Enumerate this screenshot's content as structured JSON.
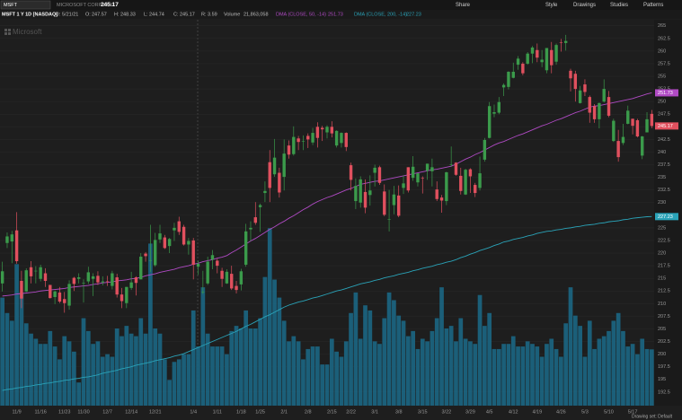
{
  "header": {
    "symbol": "MSFT",
    "company": "MICROSOFT CORP COM",
    "study": "MSFT 1 Y 1D [NASDAQ]",
    "date_label": "D:",
    "date": "5/21/21",
    "open_label": "O:",
    "high_label": "H:",
    "low_label": "L:",
    "close_label": "C:",
    "range_label": "R:",
    "range": "3.59",
    "volume_label": "Volume",
    "volume": "21,863,058"
  },
  "toolbar": {
    "items": [
      "Share",
      "Style",
      "Drawings",
      "Studies",
      "Patterns"
    ]
  },
  "footer": {
    "drawing_set": "Drawing set: Default"
  },
  "chart_data": {
    "type": "candlestick",
    "watermark": "Microsoft",
    "categories": [
      null,
      null,
      null,
      "11/9",
      null,
      null,
      null,
      null,
      "11/16",
      null,
      null,
      null,
      null,
      "11/23",
      null,
      null,
      null,
      "11/30",
      null,
      null,
      null,
      null,
      "12/7",
      null,
      null,
      null,
      null,
      "12/14",
      null,
      null,
      null,
      null,
      "12/21",
      null,
      null,
      null,
      null,
      null,
      null,
      null,
      "1/4",
      null,
      null,
      null,
      null,
      "1/11",
      null,
      null,
      null,
      null,
      "1/18",
      null,
      null,
      null,
      "1/25",
      null,
      null,
      null,
      null,
      "2/1",
      null,
      null,
      null,
      null,
      "2/8",
      null,
      null,
      null,
      null,
      "2/15",
      null,
      null,
      null,
      "2/22",
      null,
      null,
      null,
      null,
      "3/1",
      null,
      null,
      null,
      null,
      "3/8",
      null,
      null,
      null,
      null,
      "3/15",
      null,
      null,
      null,
      null,
      "3/22",
      null,
      null,
      null,
      null,
      "3/29",
      null,
      null,
      null,
      "4/5",
      null,
      null,
      null,
      null,
      "4/12",
      null,
      null,
      null,
      null,
      "4/19",
      null,
      null,
      null,
      null,
      "4/26",
      null,
      null,
      null,
      null,
      "5/3",
      null,
      null,
      null,
      null,
      "5/10",
      null,
      null,
      null,
      null,
      "5/17",
      null,
      null,
      null,
      null
    ],
    "open": [
      214.0,
      222.0,
      222.3,
      224.5,
      214.5,
      212.4,
      217.2,
      216.4,
      214.9,
      216.0,
      213.7,
      211.3,
      212.2,
      210.9,
      209.6,
      215.1,
      214.9,
      214.1,
      214.4,
      214.9,
      215.5,
      214.2,
      214.4,
      213.5,
      215.2,
      211.8,
      210.1,
      213.1,
      215.2,
      214.8,
      219.9,
      218.6,
      217.6,
      222.7,
      223.1,
      221.4,
      224.5,
      226.3,
      225.2,
      221.7,
      222.5,
      217.3,
      212.2,
      214.0,
      218.7,
      218.5,
      216.5,
      214.0,
      215.9,
      213.5,
      213.8,
      217.7,
      224.7,
      227.1,
      229.1,
      231.9,
      238.0,
      235.6,
      235.9,
      235.1,
      241.3,
      239.6,
      242.7,
      242.2,
      243.2,
      241.9,
      245.0,
      244.8,
      243.9,
      245.0,
      241.3,
      241.8,
      243.8,
      237.4,
      230.3,
      230.0,
      232.1,
      231.5,
      235.9,
      237.0,
      232.2,
      226.7,
      229.5,
      231.4,
      232.9,
      237.0,
      234.9,
      234.0,
      234.9,
      236.3,
      236.2,
      232.6,
      231.0,
      230.3,
      237.5,
      237.9,
      235.3,
      231.6,
      236.6,
      233.5,
      232.9,
      238.5,
      242.8,
      247.6,
      247.8,
      252.8,
      252.9,
      254.7,
      257.3,
      257.5,
      257.5,
      259.5,
      260.2,
      257.8,
      256.2,
      260.2,
      257.9,
      261.7,
      261.6,
      256.1,
      255.5,
      249.7,
      253.4,
      250.9,
      249.1,
      246.5,
      250.0,
      250.9,
      242.2,
      242.2,
      241.8,
      245.6,
      246.6,
      246.3,
      239.3,
      243.9,
      247.57
    ],
    "high": [
      218.3,
      224.1,
      224.4,
      228.1,
      216.5,
      217.0,
      218.4,
      217.4,
      217.7,
      217.0,
      213.7,
      212.6,
      213.3,
      212.3,
      214.6,
      215.3,
      216.0,
      214.8,
      217.3,
      216.0,
      216.4,
      215.4,
      215.5,
      216.5,
      215.9,
      213.1,
      213.3,
      216.3,
      215.4,
      220.0,
      220.2,
      225.6,
      224.0,
      225.6,
      223.6,
      223.0,
      226.0,
      227.2,
      225.6,
      223.0,
      223.0,
      218.5,
      216.5,
      219.3,
      220.6,
      218.9,
      217.1,
      216.8,
      217.5,
      214.5,
      216.9,
      225.8,
      226.3,
      230.1,
      229.8,
      234.2,
      240.4,
      242.6,
      236.9,
      242.5,
      242.3,
      245.1,
      243.2,
      243.3,
      243.7,
      244.8,
      245.9,
      245.2,
      245.3,
      246.1,
      244.3,
      243.9,
      243.9,
      237.9,
      234.8,
      235.2,
      234.6,
      235.4,
      237.5,
      237.3,
      233.6,
      232.5,
      233.3,
      233.4,
      235.4,
      237.0,
      239.2,
      235.8,
      235.2,
      237.7,
      238.7,
      234.2,
      231.5,
      236.1,
      241.1,
      238.0,
      236.9,
      236.7,
      236.8,
      233.9,
      239.1,
      242.8,
      249.9,
      249.4,
      250.9,
      253.6,
      256.0,
      257.7,
      259.0,
      257.8,
      259.8,
      261.0,
      261.5,
      260.2,
      260.6,
      261.8,
      261.5,
      262.4,
      263.2,
      256.5,
      256.1,
      253.1,
      254.4,
      251.2,
      249.5,
      249.8,
      254.4,
      252.1,
      246.6,
      244.4,
      245.6,
      249.2,
      246.6,
      246.6,
      243.2,
      247.9,
      248.33
    ],
    "low": [
      212.4,
      221.0,
      218.0,
      217.9,
      209.1,
      212.3,
      214.0,
      214.0,
      214.4,
      213.3,
      211.0,
      209.9,
      210.1,
      208.2,
      208.8,
      212.5,
      214.0,
      210.2,
      213.9,
      211.5,
      213.7,
      213.6,
      213.5,
      212.8,
      211.2,
      209.1,
      209.1,
      212.7,
      211.6,
      214.8,
      218.3,
      216.3,
      217.3,
      222.0,
      220.8,
      220.0,
      222.4,
      223.6,
      221.5,
      219.7,
      214.8,
      215.7,
      211.9,
      213.7,
      216.8,
      216.0,
      213.3,
      213.9,
      212.7,
      212.0,
      212.6,
      217.3,
      222.4,
      225.6,
      224.2,
      230.1,
      230.1,
      235.1,
      231.0,
      232.4,
      238.7,
      239.3,
      240.4,
      240.4,
      240.8,
      241.4,
      240.9,
      242.2,
      242.7,
      242.9,
      240.9,
      240.9,
      240.2,
      232.4,
      228.7,
      229.0,
      227.9,
      229.4,
      233.2,
      233.5,
      227.3,
      224.3,
      227.7,
      227.1,
      231.7,
      232.0,
      234.3,
      233.2,
      231.8,
      234.5,
      233.2,
      230.3,
      228.0,
      229.5,
      237.1,
      235.3,
      231.6,
      231.5,
      231.9,
      231.1,
      232.4,
      238.1,
      242.7,
      246.9,
      247.5,
      251.1,
      252.4,
      254.6,
      256.3,
      255.2,
      257.3,
      257.6,
      257.8,
      256.8,
      255.6,
      255.6,
      257.3,
      259.9,
      260.1,
      252.0,
      250.0,
      249.6,
      251.1,
      245.8,
      245.8,
      244.7,
      249.8,
      246.9,
      242.0,
      238.1,
      241.4,
      245.5,
      243.5,
      242.9,
      238.6,
      243.9,
      244.74
    ],
    "close": [
      216.4,
      223.3,
      223.7,
      218.4,
      211.0,
      216.6,
      215.4,
      216.5,
      217.2,
      214.5,
      211.1,
      212.4,
      210.4,
      210.1,
      213.9,
      213.9,
      215.2,
      214.1,
      216.2,
      215.4,
      214.2,
      214.4,
      214.3,
      216.0,
      211.8,
      210.5,
      213.3,
      214.2,
      214.1,
      219.3,
      219.4,
      218.6,
      222.6,
      223.9,
      221.0,
      222.8,
      225.0,
      224.2,
      221.7,
      222.4,
      217.7,
      217.9,
      212.3,
      218.3,
      219.6,
      217.5,
      214.9,
      216.3,
      213.0,
      212.7,
      216.4,
      224.3,
      225.0,
      226.0,
      229.5,
      232.3,
      232.9,
      238.9,
      232.0,
      239.7,
      239.5,
      243.0,
      242.0,
      242.2,
      242.5,
      243.8,
      242.8,
      244.5,
      245.0,
      243.7,
      244.2,
      243.8,
      241.0,
      234.5,
      233.3,
      234.6,
      229.0,
      232.4,
      236.9,
      233.9,
      227.6,
      226.7,
      231.6,
      227.4,
      233.8,
      232.4,
      237.1,
      235.8,
      234.8,
      237.7,
      237.0,
      230.7,
      230.4,
      236.0,
      237.6,
      235.5,
      232.3,
      236.5,
      235.2,
      231.9,
      235.8,
      242.4,
      249.1,
      247.9,
      249.9,
      253.3,
      255.9,
      255.9,
      258.5,
      255.6,
      259.5,
      260.7,
      258.7,
      258.3,
      260.6,
      257.2,
      261.2,
      261.6,
      262.0,
      254.6,
      252.5,
      252.2,
      251.9,
      247.8,
      246.5,
      249.7,
      252.5,
      247.2,
      246.2,
      239.0,
      243.0,
      248.2,
      245.2,
      243.1,
      243.1,
      246.5,
      245.17
    ],
    "up_color": "#3b9b4b",
    "down_color": "#e0505e",
    "volume": [
      42,
      36,
      33,
      55,
      44,
      32,
      28,
      26,
      24,
      24,
      29,
      23,
      18,
      27,
      25,
      21,
      9,
      34,
      29,
      24,
      25,
      19,
      20,
      19,
      30,
      27,
      31,
      28,
      27,
      34,
      28,
      63,
      30,
      28,
      18,
      10,
      17,
      18,
      20,
      20,
      37,
      23,
      46,
      28,
      23,
      23,
      23,
      20,
      29,
      31,
      30,
      37,
      30,
      30,
      34,
      50,
      69,
      49,
      42,
      33,
      25,
      27,
      25,
      18,
      22,
      23,
      23,
      16,
      16,
      26,
      21,
      19,
      25,
      36,
      44,
      26,
      39,
      37,
      25,
      24,
      34,
      44,
      41,
      35,
      33,
      27,
      29,
      22,
      26,
      25,
      29,
      34,
      46,
      30,
      31,
      25,
      34,
      26,
      25,
      24,
      43,
      31,
      36,
      22,
      22,
      24,
      24,
      27,
      23,
      23,
      25,
      24,
      23,
      19,
      24,
      26,
      22,
      19,
      32,
      46,
      35,
      31,
      19,
      33,
      22,
      26,
      27,
      29,
      33,
      36,
      29,
      23,
      24,
      20,
      26,
      22,
      21.863058
    ],
    "volume_color": "#1b6683",
    "y2lim": [
      0,
      150
    ],
    "series": [
      {
        "name": "DMA (CLOSE, 50, -14)",
        "color": "#b04ac4",
        "values": [
          211.5,
          211.6,
          211.7,
          211.9,
          212.0,
          212.1,
          212.2,
          212.3,
          212.5,
          212.6,
          212.7,
          212.8,
          212.9,
          213.0,
          213.2,
          213.3,
          213.4,
          213.5,
          213.6,
          213.8,
          213.9,
          214.1,
          214.2,
          214.3,
          214.5,
          214.6,
          214.7,
          214.9,
          215.0,
          215.2,
          215.5,
          215.7,
          215.9,
          216.2,
          216.4,
          216.6,
          216.8,
          217.1,
          217.3,
          217.5,
          217.8,
          218.0,
          218.3,
          218.5,
          218.7,
          219.0,
          219.2,
          219.5,
          220.1,
          220.6,
          221.2,
          221.8,
          222.4,
          222.9,
          223.5,
          224.1,
          224.7,
          225.2,
          225.8,
          226.3,
          226.9,
          227.4,
          228.0,
          228.6,
          229.1,
          229.7,
          230.2,
          230.6,
          231.0,
          231.3,
          231.7,
          232.1,
          232.5,
          232.8,
          233.2,
          233.6,
          233.8,
          234.0,
          234.2,
          234.3,
          234.5,
          234.7,
          234.9,
          235.1,
          235.3,
          235.5,
          235.7,
          235.9,
          236.1,
          236.3,
          236.5,
          236.6,
          236.8,
          237.0,
          237.2,
          237.6,
          238.1,
          238.6,
          239.0,
          239.5,
          239.9,
          240.4,
          240.9,
          241.4,
          241.8,
          242.1,
          242.5,
          242.9,
          243.3,
          243.6,
          244.0,
          244.4,
          244.8,
          245.2,
          245.5,
          245.9,
          246.3,
          246.6,
          247.0,
          247.4,
          247.8,
          248.1,
          248.5,
          248.9,
          249.1,
          249.2,
          249.4,
          249.6,
          249.8,
          250.0,
          250.2,
          250.4,
          250.6,
          250.9,
          251.2,
          251.5,
          251.73
        ]
      },
      {
        "name": "DMA (CLOSE, 200, -14)",
        "color": "#2aa3b8",
        "values": [
          192.8,
          193.0,
          193.1,
          193.3,
          193.4,
          193.6,
          193.7,
          193.9,
          194.0,
          194.2,
          194.3,
          194.5,
          194.6,
          194.8,
          194.9,
          195.1,
          195.2,
          195.4,
          195.5,
          195.7,
          195.9,
          196.2,
          196.4,
          196.6,
          196.8,
          197.1,
          197.3,
          197.5,
          197.8,
          198.0,
          198.2,
          198.4,
          198.7,
          198.9,
          199.1,
          199.3,
          199.6,
          199.8,
          200.1,
          200.5,
          200.9,
          201.3,
          201.7,
          202.1,
          202.5,
          202.9,
          203.3,
          203.7,
          204.1,
          204.5,
          205.0,
          205.5,
          205.9,
          206.4,
          206.9,
          207.4,
          207.8,
          208.3,
          208.8,
          209.3,
          209.7,
          210.0,
          210.3,
          210.5,
          210.8,
          211.1,
          211.3,
          211.6,
          211.9,
          212.2,
          212.5,
          212.7,
          213.0,
          213.3,
          213.6,
          213.9,
          214.1,
          214.3,
          214.6,
          214.8,
          215.1,
          215.3,
          215.5,
          215.8,
          216.0,
          216.2,
          216.5,
          216.7,
          217.0,
          217.2,
          217.4,
          217.7,
          217.9,
          218.2,
          218.4,
          218.7,
          219.1,
          219.4,
          219.8,
          220.1,
          220.5,
          220.8,
          221.1,
          221.5,
          221.8,
          222.2,
          222.4,
          222.7,
          222.9,
          223.1,
          223.4,
          223.6,
          223.9,
          224.1,
          224.3,
          224.4,
          224.6,
          224.7,
          224.9,
          225.0,
          225.2,
          225.3,
          225.5,
          225.6,
          225.7,
          225.9,
          226.0,
          226.2,
          226.3,
          226.4,
          226.6,
          226.7,
          226.9,
          227.0,
          227.1,
          227.2,
          227.23
        ]
      }
    ],
    "ylim": [
      189.8,
      266.2
    ],
    "yticks": [
      192.5,
      195,
      197.5,
      200,
      202.5,
      205,
      207.5,
      210,
      212.5,
      215,
      217.5,
      220,
      222.5,
      225,
      227.5,
      230,
      232.5,
      235,
      237.5,
      240,
      242.5,
      245,
      247.5,
      250,
      252.5,
      255,
      257.5,
      260,
      262.5,
      265
    ],
    "grid": true
  }
}
